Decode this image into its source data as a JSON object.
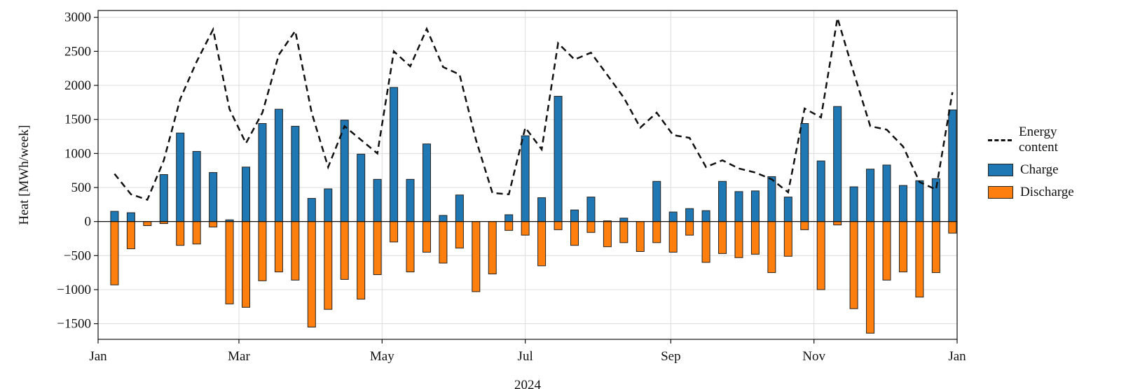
{
  "chart_data": {
    "type": "bar",
    "ylabel": "Heat [MWh/week]",
    "xlabel": "2024",
    "xlim": [
      0,
      366
    ],
    "xticks": [
      {
        "value": 0,
        "label": "Jan"
      },
      {
        "value": 60,
        "label": "Mar"
      },
      {
        "value": 121,
        "label": "May"
      },
      {
        "value": 182,
        "label": "Jul"
      },
      {
        "value": 244,
        "label": "Sep"
      },
      {
        "value": 305,
        "label": "Nov"
      },
      {
        "value": 366,
        "label": "Jan"
      }
    ],
    "ylim": [
      -1730,
      3100
    ],
    "yticks": [
      {
        "value": -1500,
        "label": "−1500"
      },
      {
        "value": -1000,
        "label": "−1000"
      },
      {
        "value": -500,
        "label": "−500"
      },
      0,
      500,
      1000,
      1500,
      2000,
      2500,
      3000
    ],
    "grid": true,
    "legend": "right",
    "x": [
      7,
      14,
      21,
      28,
      35,
      42,
      49,
      56,
      63,
      70,
      77,
      84,
      91,
      98,
      105,
      112,
      119,
      126,
      133,
      140,
      147,
      154,
      161,
      168,
      175,
      182,
      189,
      196,
      203,
      210,
      217,
      224,
      231,
      238,
      245,
      252,
      259,
      266,
      273,
      280,
      287,
      294,
      301,
      308,
      315,
      322,
      329,
      336,
      343,
      350,
      357,
      364
    ],
    "series": [
      {
        "name": "Energy content",
        "type": "line",
        "color": "#111111",
        "values": [
          700,
          400,
          320,
          900,
          1800,
          2350,
          2820,
          1650,
          1150,
          1600,
          2450,
          2800,
          1600,
          800,
          1400,
          1200,
          1000,
          2500,
          2280,
          2830,
          2270,
          2160,
          1200,
          420,
          400,
          1380,
          1060,
          2620,
          2380,
          2480,
          2150,
          1820,
          1380,
          1600,
          1270,
          1230,
          800,
          900,
          780,
          720,
          620,
          430,
          1660,
          1530,
          2990,
          2180,
          1400,
          1350,
          1100,
          580,
          470,
          1900
        ]
      },
      {
        "name": "Charge",
        "type": "bar",
        "color": "#1f77b4",
        "values": [
          150,
          130,
          0,
          690,
          1300,
          1030,
          720,
          25,
          800,
          1440,
          1650,
          1400,
          340,
          480,
          1490,
          990,
          620,
          1970,
          620,
          1140,
          90,
          390,
          0,
          0,
          100,
          1260,
          350,
          1840,
          170,
          360,
          10,
          50,
          0,
          590,
          140,
          190,
          160,
          590,
          440,
          450,
          660,
          360,
          1440,
          890,
          1690,
          510,
          770,
          830,
          530,
          600,
          630,
          1640
        ]
      },
      {
        "name": "Discharge",
        "type": "bar",
        "color": "#ff7f0e",
        "values": [
          -930,
          -400,
          -60,
          -30,
          -350,
          -330,
          -80,
          -1210,
          -1260,
          -870,
          -740,
          -860,
          -1550,
          -1290,
          -850,
          -1140,
          -780,
          -300,
          -740,
          -450,
          -610,
          -390,
          -1030,
          -770,
          -130,
          -200,
          -650,
          -120,
          -350,
          -160,
          -370,
          -310,
          -440,
          -310,
          -450,
          -200,
          -600,
          -470,
          -530,
          -480,
          -750,
          -510,
          -120,
          -1000,
          -50,
          -1280,
          -1640,
          -860,
          -740,
          -1110,
          -750,
          -170
        ]
      }
    ]
  }
}
